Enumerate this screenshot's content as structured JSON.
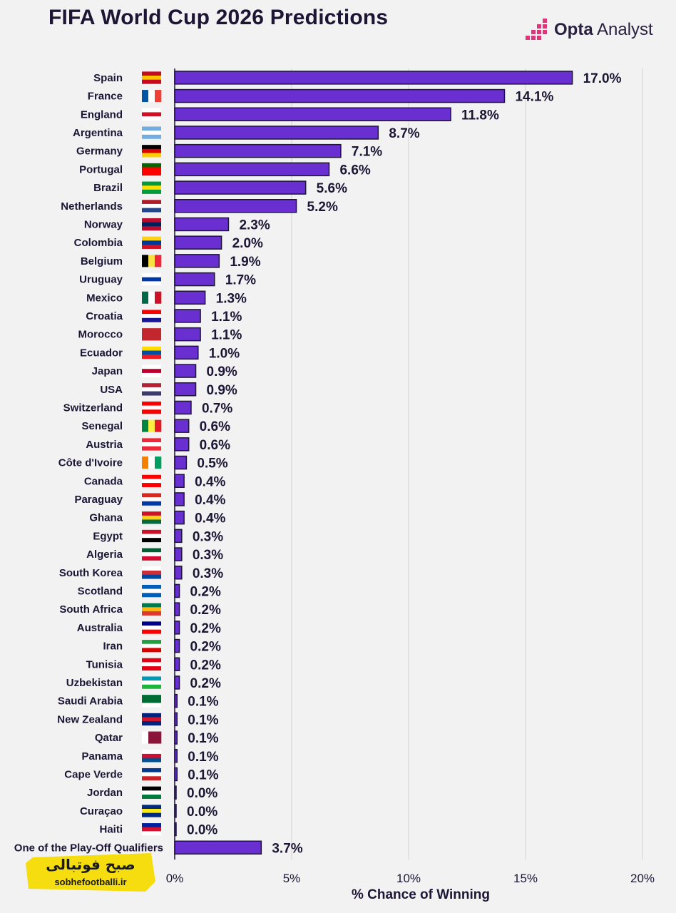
{
  "title": "FIFA World Cup 2026 Predictions",
  "brand": {
    "name_bold": "Opta",
    "name_rest": " Analyst",
    "accent": "#e0357a"
  },
  "badge": {
    "title": "صبح فوتبالی",
    "url": "sobhefootballi.ir",
    "color": "#f5dd0f"
  },
  "colors": {
    "bar": "#6a2fd0",
    "bar_border": "#1c1534",
    "text": "#1c1534",
    "grid": "#dcdcdc"
  },
  "chart_data": {
    "type": "bar",
    "orientation": "horizontal",
    "title": "FIFA World Cup 2026 Predictions",
    "xlabel": "% Chance of Winning",
    "ylabel": "",
    "xlim": [
      0,
      20
    ],
    "xticks": [
      {
        "value": 0,
        "label": "0%"
      },
      {
        "value": 5,
        "label": "5%"
      },
      {
        "value": 10,
        "label": "10%"
      },
      {
        "value": 15,
        "label": "15%"
      },
      {
        "value": 20,
        "label": "20%"
      }
    ],
    "grid": true,
    "categories": [
      "Spain",
      "France",
      "England",
      "Argentina",
      "Germany",
      "Portugal",
      "Brazil",
      "Netherlands",
      "Norway",
      "Colombia",
      "Belgium",
      "Uruguay",
      "Mexico",
      "Croatia",
      "Morocco",
      "Ecuador",
      "Japan",
      "USA",
      "Switzerland",
      "Senegal",
      "Austria",
      "Côte d'Ivoire",
      "Canada",
      "Paraguay",
      "Ghana",
      "Egypt",
      "Algeria",
      "South Korea",
      "Scotland",
      "South Africa",
      "Australia",
      "Iran",
      "Tunisia",
      "Uzbekistan",
      "Saudi Arabia",
      "New Zealand",
      "Qatar",
      "Panama",
      "Cape Verde",
      "Jordan",
      "Curaçao",
      "Haiti",
      "One of the Play-Off Qualifiers"
    ],
    "values": [
      17.0,
      14.1,
      11.8,
      8.7,
      7.1,
      6.6,
      5.6,
      5.2,
      2.3,
      2.0,
      1.9,
      1.7,
      1.3,
      1.1,
      1.1,
      1.0,
      0.9,
      0.9,
      0.7,
      0.6,
      0.6,
      0.5,
      0.4,
      0.4,
      0.4,
      0.3,
      0.3,
      0.3,
      0.2,
      0.2,
      0.2,
      0.2,
      0.2,
      0.2,
      0.1,
      0.1,
      0.1,
      0.1,
      0.1,
      0.0,
      0.0,
      0.0,
      3.7
    ],
    "labels": [
      "17.0%",
      "14.1%",
      "11.8%",
      "8.7%",
      "7.1%",
      "6.6%",
      "5.6%",
      "5.2%",
      "2.3%",
      "2.0%",
      "1.9%",
      "1.7%",
      "1.3%",
      "1.1%",
      "1.1%",
      "1.0%",
      "0.9%",
      "0.9%",
      "0.7%",
      "0.6%",
      "0.6%",
      "0.5%",
      "0.4%",
      "0.4%",
      "0.4%",
      "0.3%",
      "0.3%",
      "0.3%",
      "0.2%",
      "0.2%",
      "0.2%",
      "0.2%",
      "0.2%",
      "0.2%",
      "0.1%",
      "0.1%",
      "0.1%",
      "0.1%",
      "0.1%",
      "0.0%",
      "0.0%",
      "0.0%",
      "3.7%"
    ],
    "flag_colors": [
      [
        "#c60b1e",
        "#ffc400",
        "#c60b1e"
      ],
      [
        "#0055a4",
        "#ffffff",
        "#ef4135"
      ],
      [
        "#ffffff",
        "#ce1124",
        "#ffffff"
      ],
      [
        "#74acdf",
        "#ffffff",
        "#74acdf"
      ],
      [
        "#000000",
        "#dd0000",
        "#ffce00"
      ],
      [
        "#006600",
        "#ff0000",
        "#ff0000"
      ],
      [
        "#009c3b",
        "#ffdf00",
        "#009c3b"
      ],
      [
        "#ae1c28",
        "#ffffff",
        "#21468b"
      ],
      [
        "#ba0c2f",
        "#00205b",
        "#ba0c2f"
      ],
      [
        "#fcd116",
        "#003893",
        "#ce1126"
      ],
      [
        "#000000",
        "#fae042",
        "#ed2939"
      ],
      [
        "#ffffff",
        "#0038a8",
        "#ffffff"
      ],
      [
        "#006847",
        "#ffffff",
        "#ce1126"
      ],
      [
        "#ff0000",
        "#ffffff",
        "#171796"
      ],
      [
        "#c1272d",
        "#c1272d",
        "#c1272d"
      ],
      [
        "#ffdd00",
        "#034ea2",
        "#ed1c24"
      ],
      [
        "#ffffff",
        "#bc002d",
        "#ffffff"
      ],
      [
        "#b22234",
        "#ffffff",
        "#3c3b6e"
      ],
      [
        "#ff0000",
        "#ffffff",
        "#ff0000"
      ],
      [
        "#00853f",
        "#fdef42",
        "#e31b23"
      ],
      [
        "#ed2939",
        "#ffffff",
        "#ed2939"
      ],
      [
        "#f77f00",
        "#ffffff",
        "#009e60"
      ],
      [
        "#ff0000",
        "#ffffff",
        "#ff0000"
      ],
      [
        "#d52b1e",
        "#ffffff",
        "#0038a8"
      ],
      [
        "#ce1126",
        "#fcd116",
        "#006b3f"
      ],
      [
        "#ce1126",
        "#ffffff",
        "#000000"
      ],
      [
        "#006233",
        "#ffffff",
        "#d21034"
      ],
      [
        "#ffffff",
        "#cd2e3a",
        "#0047a0"
      ],
      [
        "#005eb8",
        "#ffffff",
        "#005eb8"
      ],
      [
        "#007a4d",
        "#ffb612",
        "#de3831"
      ],
      [
        "#00008b",
        "#ffffff",
        "#ff0000"
      ],
      [
        "#239f40",
        "#ffffff",
        "#da0000"
      ],
      [
        "#e70013",
        "#ffffff",
        "#e70013"
      ],
      [
        "#0099b5",
        "#ffffff",
        "#1eb53a"
      ],
      [
        "#006c35",
        "#006c35",
        "#ffffff"
      ],
      [
        "#00247d",
        "#cc142b",
        "#00247d"
      ],
      [
        "#ffffff",
        "#8a1538",
        "#8a1538"
      ],
      [
        "#ffffff",
        "#d21034",
        "#005293"
      ],
      [
        "#003893",
        "#ffffff",
        "#cf2027"
      ],
      [
        "#000000",
        "#ffffff",
        "#007a3d"
      ],
      [
        "#002b7f",
        "#f9e814",
        "#002b7f"
      ],
      [
        "#00209f",
        "#d21034",
        "#ffffff"
      ],
      [
        "#f2f2f2",
        "#f2f2f2",
        "#f2f2f2"
      ]
    ]
  }
}
